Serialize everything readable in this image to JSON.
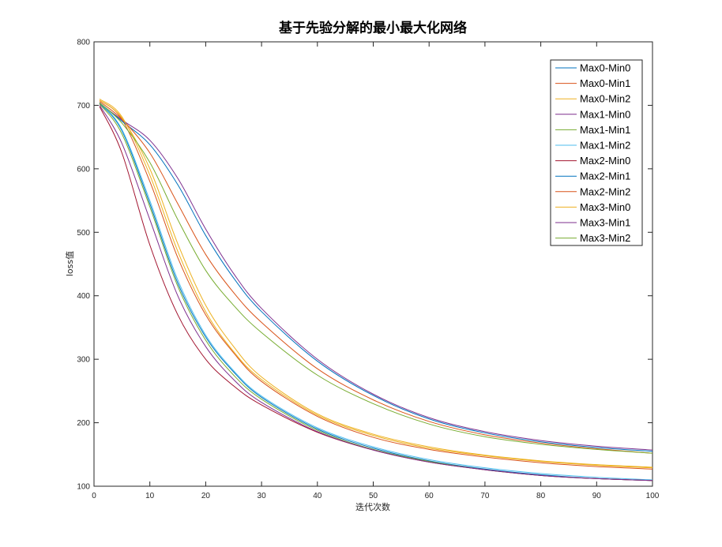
{
  "chart_data": {
    "type": "line",
    "title": "基于先验分解的最小最大化网络",
    "xlabel": "迭代次数",
    "ylabel": "loss值",
    "xlim": [
      0,
      100
    ],
    "ylim": [
      100,
      800
    ],
    "xticks": [
      0,
      10,
      20,
      30,
      40,
      50,
      60,
      70,
      80,
      90,
      100
    ],
    "yticks": [
      100,
      200,
      300,
      400,
      500,
      600,
      700,
      800
    ],
    "grid": false,
    "legend_position": "top-right",
    "x": [
      1,
      5,
      10,
      15,
      20,
      25,
      30,
      40,
      50,
      60,
      70,
      80,
      90,
      100
    ],
    "series": [
      {
        "name": "Max0-Min0",
        "color": "#0072BD",
        "values": [
          703,
          660,
          545,
          420,
          335,
          280,
          240,
          190,
          160,
          140,
          127,
          118,
          112,
          109
        ]
      },
      {
        "name": "Max0-Min1",
        "color": "#D95319",
        "values": [
          708,
          678,
          580,
          460,
          370,
          310,
          265,
          210,
          177,
          158,
          146,
          137,
          131,
          127
        ]
      },
      {
        "name": "Max0-Min2",
        "color": "#EDB120",
        "values": [
          710,
          682,
          590,
          470,
          375,
          312,
          268,
          212,
          180,
          160,
          148,
          139,
          133,
          129
        ]
      },
      {
        "name": "Max1-Min0",
        "color": "#7E2F8E",
        "values": [
          703,
          677,
          645,
          585,
          505,
          435,
          380,
          300,
          245,
          208,
          186,
          172,
          163,
          157
        ]
      },
      {
        "name": "Max1-Min1",
        "color": "#77AC30",
        "values": [
          702,
          655,
          540,
          415,
          330,
          275,
          237,
          188,
          158,
          139,
          126,
          117,
          112,
          109
        ]
      },
      {
        "name": "Max1-Min2",
        "color": "#4DBEEE",
        "values": [
          704,
          662,
          550,
          425,
          338,
          282,
          242,
          192,
          162,
          142,
          129,
          120,
          114,
          110
        ]
      },
      {
        "name": "Max2-Min0",
        "color": "#A2142F",
        "values": [
          698,
          625,
          480,
          370,
          300,
          258,
          228,
          185,
          157,
          138,
          126,
          117,
          112,
          109
        ]
      },
      {
        "name": "Max2-Min1",
        "color": "#0072BD",
        "values": [
          704,
          675,
          638,
          575,
          495,
          428,
          375,
          297,
          243,
          206,
          184,
          170,
          161,
          155
        ]
      },
      {
        "name": "Max2-Min2",
        "color": "#D95319",
        "values": [
          706,
          678,
          625,
          545,
          465,
          405,
          358,
          285,
          236,
          202,
          181,
          168,
          159,
          152
        ]
      },
      {
        "name": "Max3-Min0",
        "color": "#EDB120",
        "values": [
          708,
          680,
          600,
          482,
          385,
          320,
          272,
          214,
          182,
          162,
          149,
          140,
          134,
          130
        ]
      },
      {
        "name": "Max3-Min1",
        "color": "#7E2F8E",
        "values": [
          700,
          640,
          520,
          400,
          320,
          268,
          232,
          186,
          157,
          138,
          126,
          117,
          112,
          109
        ]
      },
      {
        "name": "Max3-Min2",
        "color": "#77AC30",
        "values": [
          704,
          672,
          610,
          520,
          440,
          385,
          342,
          275,
          230,
          198,
          178,
          166,
          158,
          152
        ]
      }
    ]
  }
}
